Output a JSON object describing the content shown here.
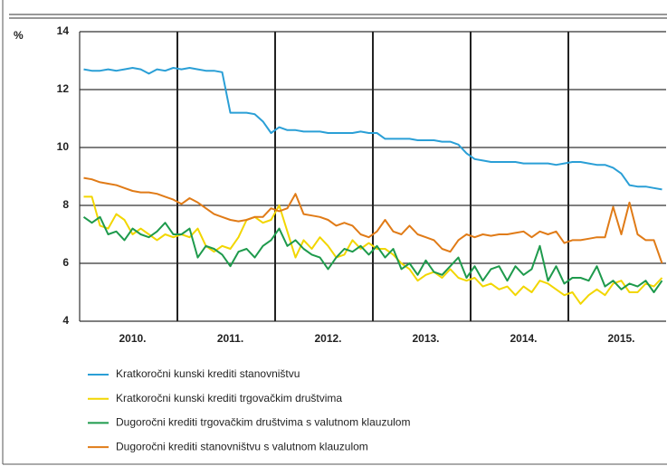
{
  "chart_data": {
    "type": "line",
    "ylabel": "%",
    "categories": [
      null,
      null,
      null,
      null,
      null,
      null,
      "2010.",
      null,
      null,
      null,
      null,
      null,
      null,
      null,
      null,
      null,
      null,
      null,
      "2011.",
      null,
      null,
      null,
      null,
      null,
      null,
      null,
      null,
      null,
      null,
      null,
      "2012.",
      null,
      null,
      null,
      null,
      null,
      null,
      null,
      null,
      null,
      null,
      null,
      "2013.",
      null,
      null,
      null,
      null,
      null,
      null,
      null,
      null,
      null,
      null,
      null,
      "2014.",
      null,
      null,
      null,
      null,
      null,
      null,
      null,
      null,
      null,
      null,
      null,
      "2015.",
      null,
      null,
      null,
      null,
      null
    ],
    "series": [
      {
        "name": "Kratkoročni kunski krediti stanovništvu",
        "color": "#2a9fd6",
        "values": [
          12.7,
          12.65,
          12.65,
          12.7,
          12.65,
          12.7,
          12.75,
          12.7,
          12.55,
          12.7,
          12.65,
          12.75,
          12.7,
          12.75,
          12.7,
          12.65,
          12.65,
          12.6,
          11.2,
          11.2,
          11.2,
          11.15,
          10.9,
          10.5,
          10.7,
          10.6,
          10.6,
          10.55,
          10.55,
          10.55,
          10.5,
          10.5,
          10.5,
          10.5,
          10.55,
          10.5,
          10.5,
          10.3,
          10.3,
          10.3,
          10.3,
          10.25,
          10.25,
          10.25,
          10.2,
          10.2,
          10.1,
          9.8,
          9.6,
          9.55,
          9.5,
          9.5,
          9.5,
          9.5,
          9.45,
          9.45,
          9.45,
          9.45,
          9.4,
          9.45,
          9.5,
          9.5,
          9.45,
          9.4,
          9.4,
          9.3,
          9.1,
          8.7,
          8.65,
          8.65,
          8.6,
          8.55
        ]
      },
      {
        "name": "Kratkoročni kunski krediti trgovačkim društvima",
        "color": "#f2d600",
        "values": [
          8.3,
          8.3,
          7.3,
          7.2,
          7.7,
          7.5,
          7.0,
          7.2,
          7.0,
          6.8,
          7.0,
          6.9,
          7.0,
          6.9,
          7.2,
          6.6,
          6.4,
          6.6,
          6.5,
          6.9,
          7.5,
          7.6,
          7.4,
          7.5,
          8.0,
          7.1,
          6.2,
          6.8,
          6.5,
          6.9,
          6.6,
          6.2,
          6.3,
          6.8,
          6.5,
          6.7,
          6.5,
          6.5,
          6.3,
          6.0,
          5.8,
          5.4,
          5.6,
          5.7,
          5.5,
          5.8,
          5.5,
          5.4,
          5.5,
          5.2,
          5.3,
          5.1,
          5.2,
          4.9,
          5.2,
          5.0,
          5.4,
          5.3,
          5.1,
          4.9,
          5.0,
          4.6,
          4.9,
          5.1,
          4.9,
          5.3,
          5.4,
          5.0,
          5.0,
          5.3,
          5.2,
          5.5
        ]
      },
      {
        "name": "Dugoročni krediti trgovačkim društvima s valutnom klauzulom",
        "color": "#1e9a4c",
        "values": [
          7.6,
          7.4,
          7.6,
          7.0,
          7.1,
          6.8,
          7.2,
          7.0,
          6.9,
          7.1,
          7.4,
          7.0,
          7.0,
          7.2,
          6.2,
          6.6,
          6.5,
          6.3,
          5.9,
          6.4,
          6.5,
          6.2,
          6.6,
          6.8,
          7.2,
          6.6,
          6.8,
          6.5,
          6.3,
          6.2,
          5.8,
          6.2,
          6.5,
          6.4,
          6.6,
          6.3,
          6.6,
          6.2,
          6.5,
          5.8,
          6.0,
          5.6,
          6.1,
          5.7,
          5.6,
          5.9,
          6.2,
          5.5,
          5.9,
          5.4,
          5.8,
          5.9,
          5.4,
          5.9,
          5.6,
          5.8,
          6.6,
          5.4,
          5.9,
          5.3,
          5.5,
          5.5,
          5.4,
          5.9,
          5.2,
          5.4,
          5.1,
          5.3,
          5.2,
          5.4,
          5.0,
          5.4
        ]
      },
      {
        "name": "Dugoročni krediti stanovništvu s valutnom klauzulom",
        "color": "#e07b17",
        "values": [
          8.95,
          8.9,
          8.8,
          8.75,
          8.7,
          8.6,
          8.5,
          8.45,
          8.45,
          8.4,
          8.3,
          8.2,
          8.05,
          8.25,
          8.1,
          7.9,
          7.7,
          7.6,
          7.5,
          7.45,
          7.5,
          7.6,
          7.6,
          7.9,
          7.8,
          7.9,
          8.4,
          7.7,
          7.65,
          7.6,
          7.5,
          7.3,
          7.4,
          7.3,
          7.0,
          6.9,
          7.1,
          7.5,
          7.1,
          7.0,
          7.3,
          7.0,
          6.9,
          6.8,
          6.5,
          6.4,
          6.8,
          7.0,
          6.9,
          7.0,
          6.95,
          7.0,
          7.0,
          7.05,
          7.1,
          6.9,
          7.1,
          7.0,
          7.1,
          6.7,
          6.8,
          6.8,
          6.85,
          6.9,
          6.9,
          7.95,
          7.0,
          8.1,
          7.0,
          6.8,
          6.8,
          6.0
        ]
      }
    ],
    "ylim": [
      4,
      14
    ],
    "yticks": [
      4,
      6,
      8,
      10,
      12,
      14
    ],
    "grid": true
  }
}
